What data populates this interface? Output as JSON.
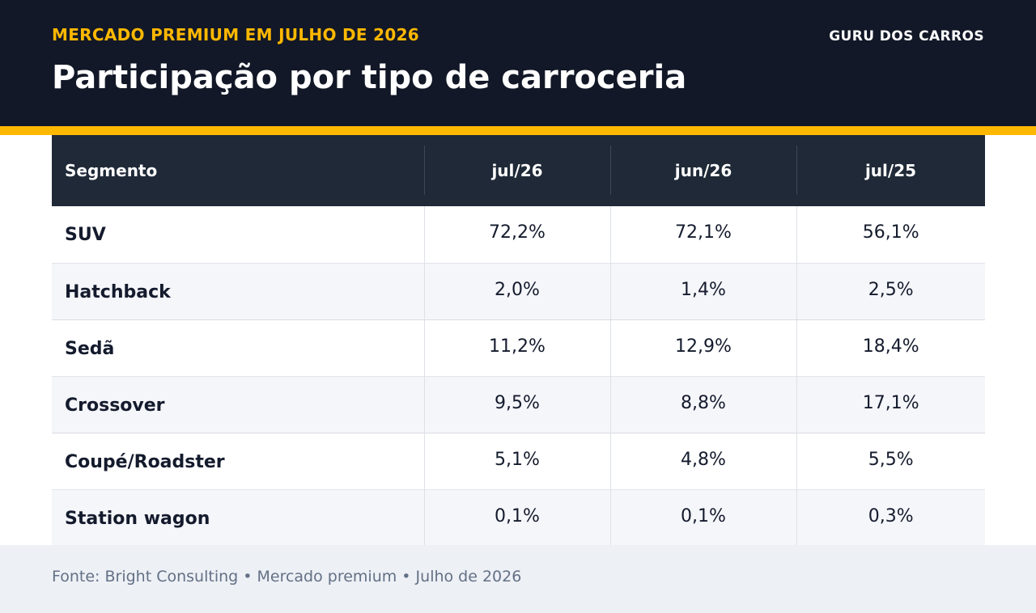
{
  "header": {
    "kicker": "MERCADO PREMIUM EM JULHO DE 2026",
    "title": "Participação por tipo de carroceria",
    "brand": "GURU DOS CARROS"
  },
  "colors": {
    "header_bg": "#121827",
    "accent": "#ffb800",
    "table_header_bg": "#1f2937",
    "row_alt_bg": "#f5f6fa",
    "footer_bg": "#edf0f5"
  },
  "chart_data": {
    "type": "table",
    "title": "Participação por tipo de carroceria",
    "columns": [
      "Segmento",
      "jul/26",
      "jun/26",
      "jul/25"
    ],
    "rows": [
      {
        "segment": "SUV",
        "values": [
          "72,2%",
          "72,1%",
          "56,1%"
        ]
      },
      {
        "segment": "Hatchback",
        "values": [
          "2,0%",
          "1,4%",
          "2,5%"
        ]
      },
      {
        "segment": "Sedã",
        "values": [
          "11,2%",
          "12,9%",
          "18,4%"
        ]
      },
      {
        "segment": "Crossover",
        "values": [
          "9,5%",
          "8,8%",
          "17,1%"
        ]
      },
      {
        "segment": "Coupé/Roadster",
        "values": [
          "5,1%",
          "4,8%",
          "5,5%"
        ]
      },
      {
        "segment": "Station wagon",
        "values": [
          "0,1%",
          "0,1%",
          "0,3%"
        ]
      }
    ]
  },
  "footer": {
    "source": "Fonte: Bright Consulting • Mercado premium • Julho de 2026"
  }
}
